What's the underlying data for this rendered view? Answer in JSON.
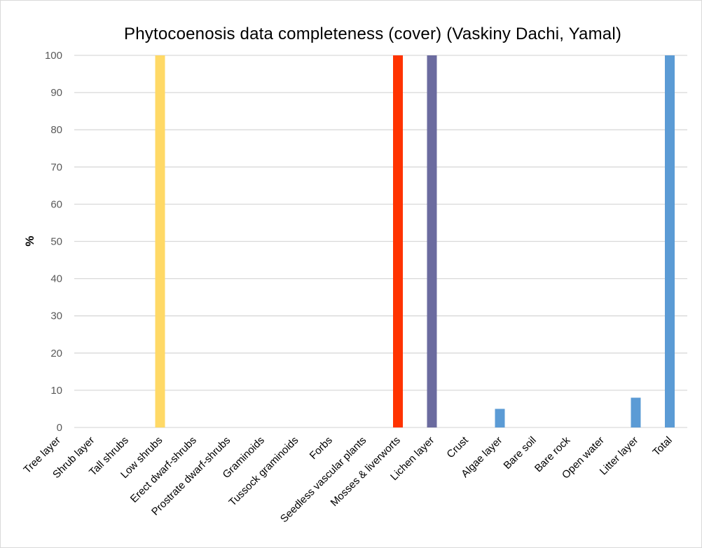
{
  "chart_data": {
    "type": "bar",
    "title": "Phytocoenosis  data completeness (cover) (Vaskiny  Dachi, Yamal)",
    "ylabel": "%",
    "xlabel": "",
    "ylim": [
      0,
      100
    ],
    "yticks": [
      0,
      10,
      20,
      30,
      40,
      50,
      60,
      70,
      80,
      90,
      100
    ],
    "grid": true,
    "legend": "none",
    "categories": [
      "Tree layer",
      "Shrub layer",
      "Tall shrubs",
      "Low shrubs",
      "Erect dwarf-shrubs",
      "Prostrate dwarf-shrubs",
      "Graminoids",
      "Tussock graminoids",
      "Forbs",
      "Seedless vascular plants",
      "Mosses & liverworts",
      "Lichen layer",
      "Crust",
      "Algae layer",
      "Bare soil",
      "Bare rock",
      "Open water",
      "Litter layer",
      "Total"
    ],
    "values": [
      0,
      0,
      0,
      100,
      0,
      0,
      0,
      0,
      0,
      0,
      100,
      100,
      0,
      5,
      0,
      0,
      0,
      8,
      100
    ],
    "colors": [
      "#5b9bd5",
      "#5b9bd5",
      "#5b9bd5",
      "#ffd966",
      "#5b9bd5",
      "#5b9bd5",
      "#5b9bd5",
      "#5b9bd5",
      "#5b9bd5",
      "#5b9bd5",
      "#ff3300",
      "#6b6b9f",
      "#5b9bd5",
      "#5b9bd5",
      "#5b9bd5",
      "#5b9bd5",
      "#5b9bd5",
      "#5b9bd5",
      "#5b9bd5"
    ],
    "gridline_color": "#d9d9d9"
  }
}
